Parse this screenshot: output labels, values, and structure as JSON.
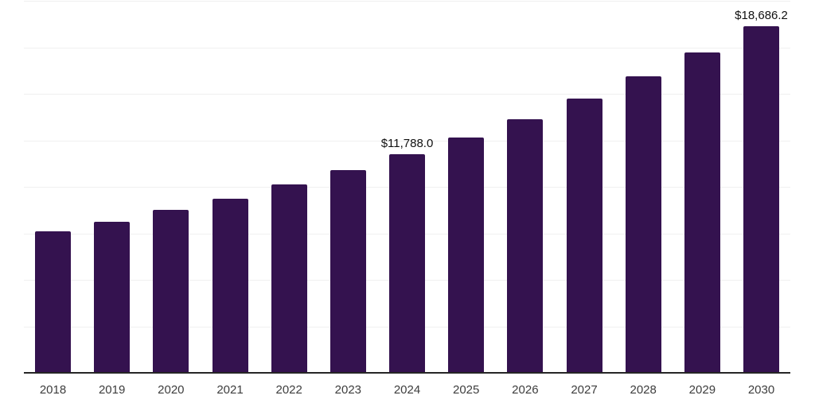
{
  "chart_data": {
    "type": "bar",
    "title": "",
    "xlabel": "",
    "ylabel": "",
    "categories": [
      "2018",
      "2019",
      "2020",
      "2021",
      "2022",
      "2023",
      "2024",
      "2025",
      "2026",
      "2027",
      "2028",
      "2029",
      "2030"
    ],
    "values": [
      7660,
      8165,
      8794,
      9422,
      10162,
      10945,
      11788.0,
      12673,
      13669,
      14781,
      15992,
      17262,
      18686.2
    ],
    "ylim": [
      0,
      20000
    ],
    "grid_step": 2500,
    "grid": true,
    "legend": false,
    "bar_color": "#34124f",
    "annotations": [
      {
        "category": "2024",
        "text": "$11,788.0"
      },
      {
        "category": "2030",
        "text": "$18,686.2"
      }
    ]
  },
  "colors": {
    "background": "#ffffff",
    "bar": "#34124f",
    "gridline": "#f0f0f0",
    "axis_line": "#262626",
    "tick_label": "#3d3d3d",
    "data_label": "#111111"
  }
}
